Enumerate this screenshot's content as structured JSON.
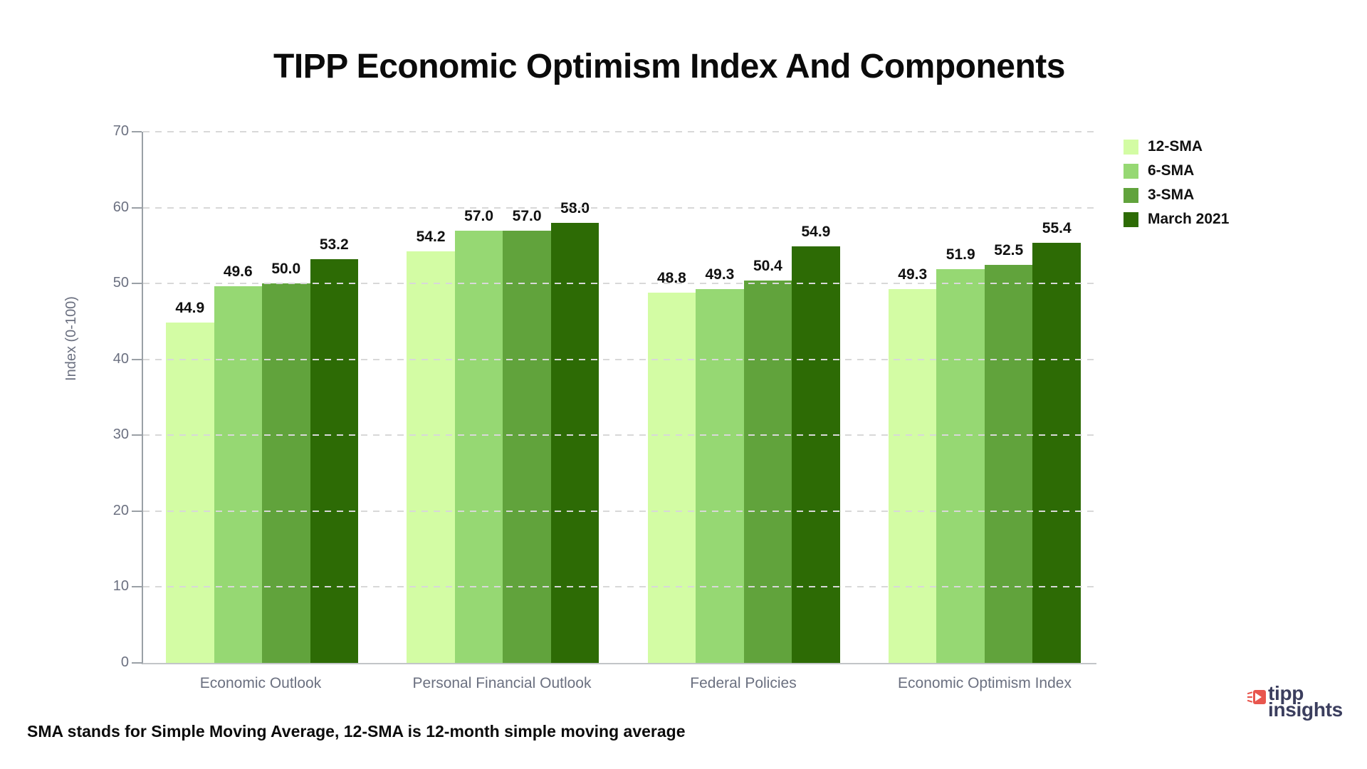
{
  "title": "TIPP Economic Optimism Index And Components",
  "footnote": "SMA stands for Simple Moving Average, 12-SMA is 12-month simple moving average",
  "logo": {
    "line1": "tipp",
    "line2": "insights",
    "icon": "tipp-arrow-icon",
    "icon_color": "#e8564e",
    "text_color": "#3b3e5e"
  },
  "colors": {
    "axis_line": "#9aa0a6",
    "baseline": "#c2c5c8",
    "gridline": "#d8d8d8",
    "tick_text": "#6b7080",
    "value_label_text": "#111111"
  },
  "chart_data": {
    "type": "bar",
    "title": "TIPP Economic Optimism Index And Components",
    "categories": [
      "Economic Outlook",
      "Personal Financial Outlook",
      "Federal Policies",
      "Economic Optimism Index"
    ],
    "series": [
      {
        "name": "12-SMA",
        "color": "#d3fca4",
        "values": [
          44.9,
          54.2,
          48.8,
          49.3
        ]
      },
      {
        "name": "6-SMA",
        "color": "#96d873",
        "values": [
          49.6,
          57.0,
          49.3,
          51.9
        ]
      },
      {
        "name": "3-SMA",
        "color": "#61a33c",
        "values": [
          50.0,
          57.0,
          50.4,
          52.5
        ]
      },
      {
        "name": "March 2021",
        "color": "#2d6b05",
        "values": [
          53.2,
          58.0,
          54.9,
          55.4
        ]
      }
    ],
    "xlabel": "",
    "ylabel": "Index (0-100)",
    "ylim": [
      0,
      70
    ],
    "yticks": [
      0,
      10,
      20,
      30,
      40,
      50,
      60,
      70
    ],
    "grid": "horizontal-dashed",
    "legend_position": "top-right",
    "value_labels": "one-decimal"
  }
}
